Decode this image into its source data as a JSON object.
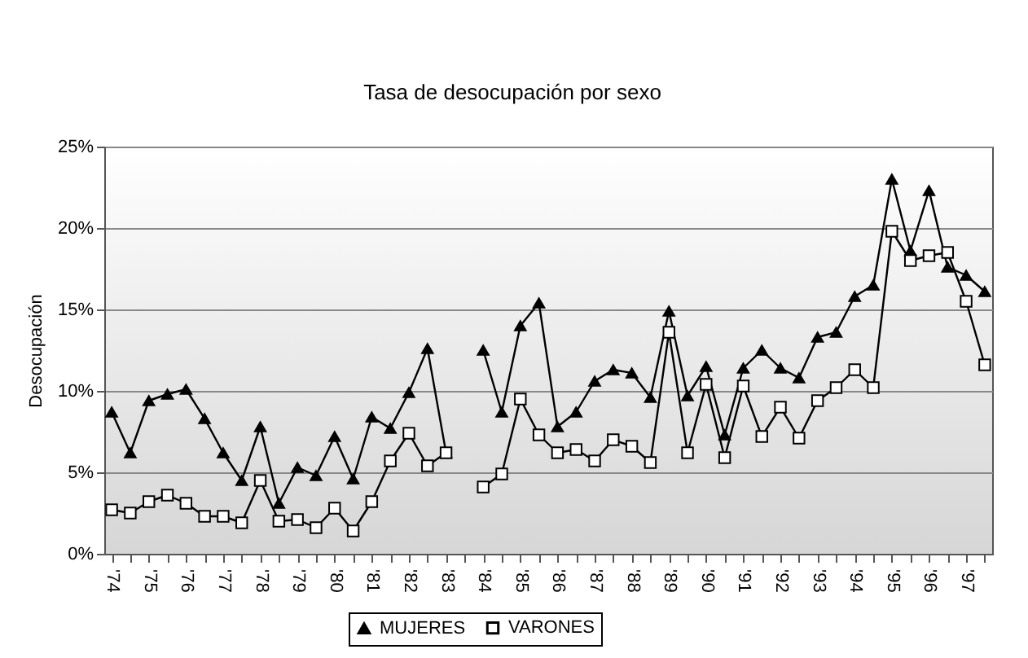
{
  "chart_data": {
    "type": "line",
    "title": "Tasa de desocupación por sexo",
    "ylabel": "Desocupación",
    "categories": [
      "'74",
      null,
      "'75",
      null,
      "'76",
      null,
      "'77",
      null,
      "'78",
      null,
      "'79",
      null,
      "'80",
      null,
      "'81",
      null,
      "'82",
      null,
      "'83",
      null,
      "'84",
      null,
      "'85",
      null,
      "'86",
      null,
      "'87",
      null,
      "'88",
      null,
      "'89",
      null,
      "'90",
      null,
      "'91",
      null,
      "'92",
      null,
      "'93",
      null,
      "'94",
      null,
      "'95",
      null,
      "'96",
      null,
      "'97",
      null
    ],
    "series": [
      {
        "name": "MUJERES",
        "color": "#000000",
        "marker": "triangle",
        "values": [
          8.7,
          6.2,
          9.4,
          9.8,
          10.1,
          8.3,
          6.2,
          4.5,
          7.8,
          3.1,
          5.3,
          4.8,
          7.2,
          4.6,
          8.4,
          7.7,
          9.9,
          12.6,
          6.2,
          null,
          12.5,
          8.7,
          14.0,
          15.4,
          7.8,
          8.7,
          10.6,
          11.3,
          11.1,
          9.6,
          14.9,
          9.7,
          11.5,
          7.3,
          11.4,
          12.5,
          11.4,
          10.8,
          13.3,
          13.6,
          15.8,
          16.5,
          23.0,
          18.6,
          22.3,
          17.6,
          17.1,
          16.1
        ]
      },
      {
        "name": "VARONES",
        "color": "#000000",
        "marker": "square",
        "values": [
          2.7,
          2.5,
          3.2,
          3.6,
          3.1,
          2.3,
          2.3,
          1.9,
          4.5,
          2.0,
          2.1,
          1.6,
          2.8,
          1.4,
          3.2,
          5.7,
          7.4,
          5.4,
          6.2,
          null,
          4.1,
          4.9,
          9.5,
          7.3,
          6.2,
          6.4,
          5.7,
          7.0,
          6.6,
          5.6,
          13.6,
          6.2,
          10.4,
          5.9,
          10.3,
          7.2,
          9.0,
          7.1,
          9.4,
          10.2,
          11.3,
          10.2,
          19.8,
          18.0,
          18.3,
          18.5,
          15.5,
          11.6
        ]
      }
    ],
    "ylim": [
      0,
      25
    ],
    "yticks": [
      {
        "value": 0,
        "label": "0%"
      },
      {
        "value": 5,
        "label": "5%"
      },
      {
        "value": 10,
        "label": "10%"
      },
      {
        "value": 15,
        "label": "15%"
      },
      {
        "value": 20,
        "label": "20%"
      },
      {
        "value": 25,
        "label": "25%"
      }
    ],
    "grid": "y",
    "legend": "bottom",
    "line_style": "solid"
  }
}
